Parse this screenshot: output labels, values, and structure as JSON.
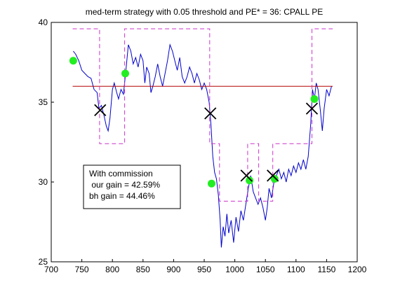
{
  "chart_data": {
    "type": "line",
    "title": "med-term strategy with 0.05 threshold and PE* = 36: CPALL PE",
    "xlabel": "",
    "ylabel": "",
    "xlim": [
      700,
      1200
    ],
    "ylim": [
      25,
      40
    ],
    "x_ticks": [
      "700",
      "750",
      "800",
      "850",
      "900",
      "950",
      "1000",
      "1050",
      "1100",
      "1150",
      "1200"
    ],
    "y_ticks": [
      "25",
      "30",
      "35",
      "40"
    ],
    "grid": false,
    "legend": "none",
    "colors": {
      "pe_series": "#0000cc",
      "threshold_line": "#b30000",
      "position_line": "#cc33cc",
      "buy_marker": "#22ee22",
      "sell_marker": "#000000"
    },
    "series": [
      {
        "style": "line",
        "color": "#0000cc",
        "points": [
          [
            736,
            38.2
          ],
          [
            740,
            38.0
          ],
          [
            745,
            37.6
          ],
          [
            750,
            37.0
          ],
          [
            755,
            36.8
          ],
          [
            760,
            36.6
          ],
          [
            765,
            36.5
          ],
          [
            770,
            35.8
          ],
          [
            775,
            35.6
          ],
          [
            778,
            34.6
          ],
          [
            782,
            34.8
          ],
          [
            786,
            34.2
          ],
          [
            790,
            33.5
          ],
          [
            793,
            33.2
          ],
          [
            796,
            34.0
          ],
          [
            800,
            35.8
          ],
          [
            803,
            36.2
          ],
          [
            807,
            35.6
          ],
          [
            810,
            35.2
          ],
          [
            814,
            35.8
          ],
          [
            818,
            35.5
          ],
          [
            822,
            37.0
          ],
          [
            826,
            38.6
          ],
          [
            830,
            38.2
          ],
          [
            834,
            37.4
          ],
          [
            838,
            37.8
          ],
          [
            842,
            37.2
          ],
          [
            846,
            38.0
          ],
          [
            850,
            37.6
          ],
          [
            853,
            36.2
          ],
          [
            856,
            37.2
          ],
          [
            860,
            36.8
          ],
          [
            863,
            35.6
          ],
          [
            866,
            36.0
          ],
          [
            870,
            36.6
          ],
          [
            874,
            37.4
          ],
          [
            878,
            36.6
          ],
          [
            882,
            36.0
          ],
          [
            886,
            36.8
          ],
          [
            890,
            37.6
          ],
          [
            894,
            38.6
          ],
          [
            898,
            38.2
          ],
          [
            902,
            37.6
          ],
          [
            906,
            37.0
          ],
          [
            910,
            37.8
          ],
          [
            914,
            36.6
          ],
          [
            918,
            36.2
          ],
          [
            922,
            36.6
          ],
          [
            926,
            37.2
          ],
          [
            930,
            36.8
          ],
          [
            934,
            36.2
          ],
          [
            938,
            36.8
          ],
          [
            942,
            36.4
          ],
          [
            946,
            35.8
          ],
          [
            950,
            36.2
          ],
          [
            954,
            35.8
          ],
          [
            958,
            35.0
          ],
          [
            961,
            33.6
          ],
          [
            964,
            31.6
          ],
          [
            967,
            30.6
          ],
          [
            970,
            30.2
          ],
          [
            973,
            29.2
          ],
          [
            976,
            27.6
          ],
          [
            978,
            25.9
          ],
          [
            981,
            27.2
          ],
          [
            984,
            26.6
          ],
          [
            987,
            28.0
          ],
          [
            990,
            26.8
          ],
          [
            994,
            27.6
          ],
          [
            998,
            26.2
          ],
          [
            1002,
            27.8
          ],
          [
            1006,
            26.9
          ],
          [
            1010,
            28.2
          ],
          [
            1014,
            27.6
          ],
          [
            1018,
            28.6
          ],
          [
            1022,
            29.6
          ],
          [
            1026,
            30.4
          ],
          [
            1030,
            29.4
          ],
          [
            1034,
            29.0
          ],
          [
            1038,
            28.6
          ],
          [
            1042,
            29.0
          ],
          [
            1046,
            28.4
          ],
          [
            1050,
            27.6
          ],
          [
            1053,
            28.4
          ],
          [
            1056,
            29.6
          ],
          [
            1060,
            29.0
          ],
          [
            1064,
            30.0
          ],
          [
            1068,
            30.4
          ],
          [
            1072,
            30.8
          ],
          [
            1076,
            30.2
          ],
          [
            1080,
            30.6
          ],
          [
            1084,
            30.0
          ],
          [
            1088,
            30.8
          ],
          [
            1092,
            30.4
          ],
          [
            1096,
            31.0
          ],
          [
            1100,
            30.6
          ],
          [
            1104,
            31.2
          ],
          [
            1108,
            30.8
          ],
          [
            1112,
            31.4
          ],
          [
            1116,
            30.8
          ],
          [
            1120,
            31.6
          ],
          [
            1124,
            33.6
          ],
          [
            1127,
            35.8
          ],
          [
            1130,
            35.2
          ],
          [
            1133,
            36.2
          ],
          [
            1136,
            35.8
          ],
          [
            1140,
            34.4
          ],
          [
            1143,
            33.2
          ],
          [
            1146,
            34.6
          ],
          [
            1150,
            35.8
          ],
          [
            1154,
            35.4
          ],
          [
            1158,
            36.0
          ]
        ]
      },
      {
        "style": "line",
        "color": "#b30000",
        "points": [
          [
            735,
            36.0
          ],
          [
            1160,
            36.0
          ]
        ]
      },
      {
        "style": "dashed",
        "color": "#cc33cc",
        "points": [
          [
            735,
            39.6
          ],
          [
            779,
            39.6
          ],
          [
            779,
            32.4
          ],
          [
            820,
            32.4
          ],
          [
            820,
            39.6
          ],
          [
            959,
            39.6
          ],
          [
            959,
            32.4
          ],
          [
            975,
            32.4
          ],
          [
            975,
            28.8
          ],
          [
            1021,
            28.8
          ],
          [
            1021,
            32.4
          ],
          [
            1039,
            32.4
          ],
          [
            1039,
            28.8
          ],
          [
            1062,
            28.8
          ],
          [
            1062,
            32.4
          ],
          [
            1126,
            32.4
          ],
          [
            1126,
            39.6
          ],
          [
            1160,
            39.6
          ]
        ]
      },
      {
        "style": "markers",
        "marker": "circle",
        "color": "#22ee22",
        "points": [
          [
            736,
            37.6
          ],
          [
            821,
            36.8
          ],
          [
            962,
            29.9
          ],
          [
            1024,
            30.1
          ],
          [
            1065,
            30.2
          ],
          [
            1130,
            35.2
          ]
        ]
      },
      {
        "style": "markers",
        "marker": "x",
        "color": "#000000",
        "points": [
          [
            780,
            34.5
          ],
          [
            960,
            34.3
          ],
          [
            1019,
            30.4
          ],
          [
            1062,
            30.4
          ],
          [
            1126,
            34.6
          ]
        ]
      }
    ],
    "annotation": {
      "lines": [
        "With commission",
        " our gain = 42.59%",
        "bh gain = 44.46%"
      ]
    }
  }
}
